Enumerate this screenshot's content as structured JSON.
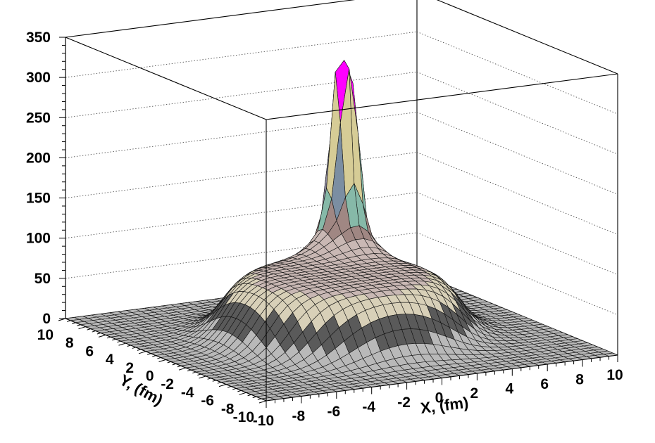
{
  "chart_data": {
    "type": "surface",
    "xlabel": "X, (fm)",
    "ylabel": "Y, (fm)",
    "zlabel": "",
    "xlim": [
      -10,
      10
    ],
    "ylim": [
      -10,
      10
    ],
    "zlim": [
      0,
      350
    ],
    "x_ticks": [
      "-10",
      "-8",
      "-6",
      "-4",
      "-2",
      "0",
      "2",
      "4",
      "6",
      "8",
      "10"
    ],
    "y_ticks": [
      "-10",
      "-8",
      "-6",
      "-4",
      "-2",
      "0",
      "2",
      "4",
      "6",
      "8",
      "10"
    ],
    "z_ticks": [
      "0",
      "50",
      "100",
      "150",
      "200",
      "250",
      "300",
      "350"
    ],
    "grid": true,
    "surface": {
      "description_terms": "broad plateau plus a sharp peak",
      "plateau_height": 80,
      "plateau_radius": 6,
      "peak_center": [
        3,
        5
      ],
      "peak_height": 310,
      "grid_points": 41
    },
    "colors": {
      "band_0_25": "#b9b9b9",
      "band_25_50": "#5a5a5a",
      "band_50_75": "#d8d0b8",
      "band_75_100": "#c9b8b4",
      "band_100_125": "#a08783",
      "band_125_150": "#86b9a8",
      "band_150_175": "#7b8ea2",
      "band_175_200": "#8d8aa0",
      "band_200_225": "#d6cc96",
      "band_225_250": "#b0968c",
      "band_250_275": "#ff0000",
      "band_275_290": "#ff00ff",
      "band_290_305": "#00ff00",
      "band_305_350": "#000000"
    }
  }
}
